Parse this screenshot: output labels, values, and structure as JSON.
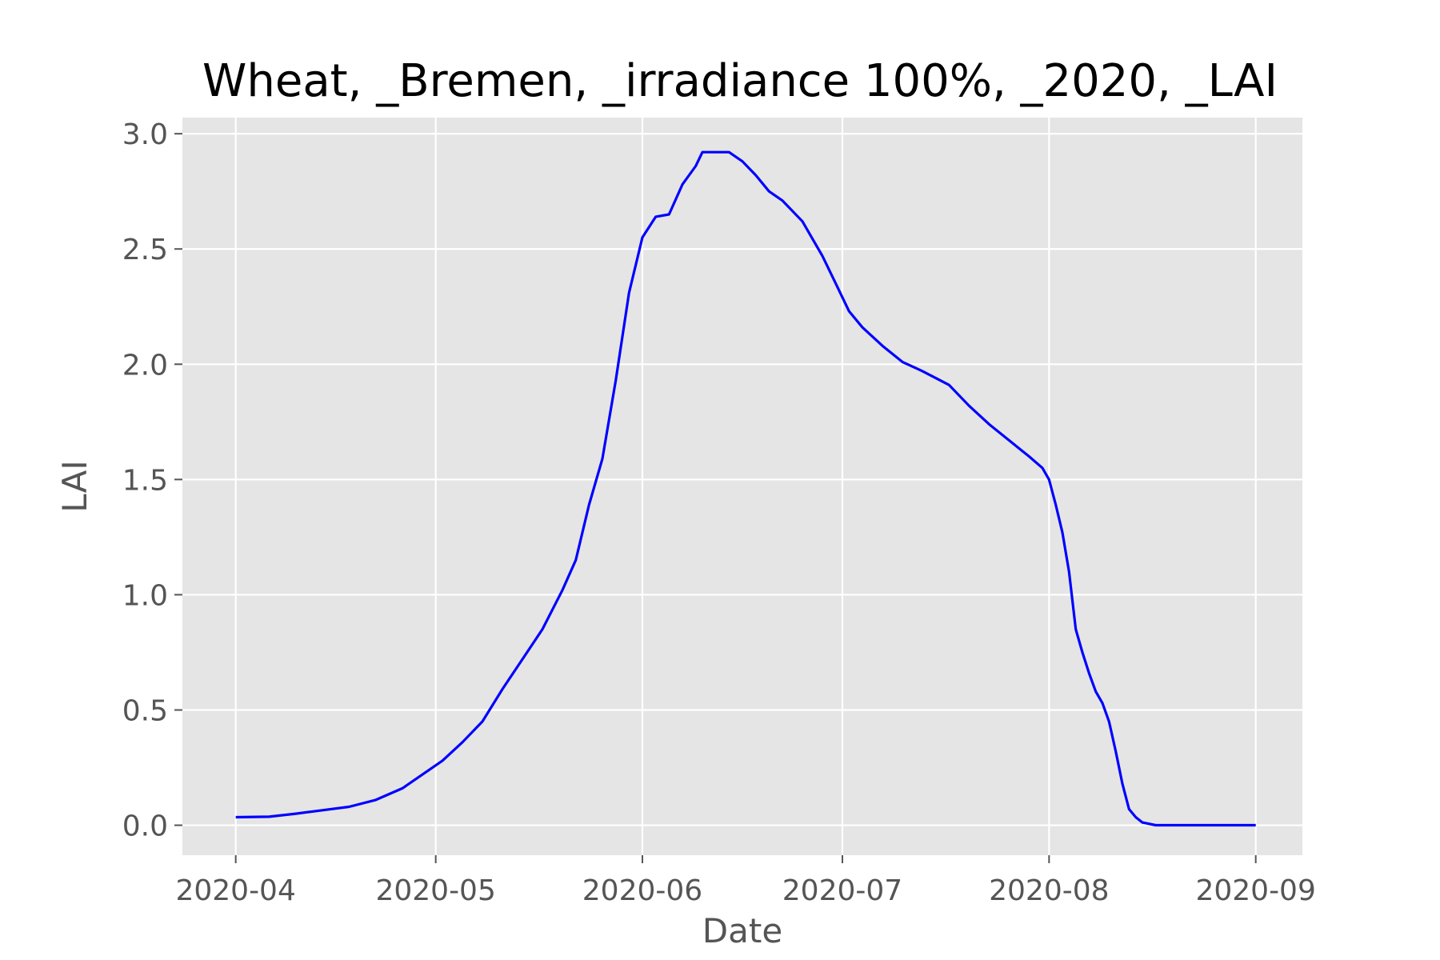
{
  "chart_data": {
    "type": "line",
    "title": "Wheat, _Bremen, _irradiance 100%, _2020, _LAI",
    "xlabel": "Date",
    "ylabel": "LAI",
    "x_ticks": [
      "2020-04",
      "2020-05",
      "2020-06",
      "2020-07",
      "2020-08",
      "2020-09"
    ],
    "y_ticks": [
      "0.0",
      "0.5",
      "1.0",
      "1.5",
      "2.0",
      "2.5",
      "3.0"
    ],
    "xlim": [
      "2020-03-24",
      "2020-09-08"
    ],
    "ylim": [
      -0.13,
      3.07
    ],
    "grid": true,
    "style": "ggplot",
    "colors": {
      "line": "#0000ff",
      "panel": "#e5e5e5",
      "grid": "#ffffff",
      "tick_text": "#555555"
    },
    "series": [
      {
        "points": [
          [
            "2020-04-01",
            0.035
          ],
          [
            "2020-04-06",
            0.037
          ],
          [
            "2020-04-10",
            0.05
          ],
          [
            "2020-04-14",
            0.065
          ],
          [
            "2020-04-18",
            0.08
          ],
          [
            "2020-04-22",
            0.11
          ],
          [
            "2020-04-26",
            0.16
          ],
          [
            "2020-04-30",
            0.24
          ],
          [
            "2020-05-02",
            0.28
          ],
          [
            "2020-05-05",
            0.36
          ],
          [
            "2020-05-08",
            0.45
          ],
          [
            "2020-05-11",
            0.59
          ],
          [
            "2020-05-14",
            0.72
          ],
          [
            "2020-05-17",
            0.85
          ],
          [
            "2020-05-20",
            1.02
          ],
          [
            "2020-05-22",
            1.15
          ],
          [
            "2020-05-24",
            1.39
          ],
          [
            "2020-05-26",
            1.59
          ],
          [
            "2020-05-28",
            1.93
          ],
          [
            "2020-05-30",
            2.31
          ],
          [
            "2020-06-01",
            2.55
          ],
          [
            "2020-06-03",
            2.64
          ],
          [
            "2020-06-05",
            2.65
          ],
          [
            "2020-06-07",
            2.78
          ],
          [
            "2020-06-09",
            2.86
          ],
          [
            "2020-06-10",
            2.92
          ],
          [
            "2020-06-12",
            2.92
          ],
          [
            "2020-06-14",
            2.92
          ],
          [
            "2020-06-16",
            2.88
          ],
          [
            "2020-06-18",
            2.82
          ],
          [
            "2020-06-20",
            2.75
          ],
          [
            "2020-06-22",
            2.71
          ],
          [
            "2020-06-25",
            2.62
          ],
          [
            "2020-06-28",
            2.47
          ],
          [
            "2020-06-30",
            2.35
          ],
          [
            "2020-07-02",
            2.23
          ],
          [
            "2020-07-04",
            2.16
          ],
          [
            "2020-07-07",
            2.08
          ],
          [
            "2020-07-10",
            2.01
          ],
          [
            "2020-07-13",
            1.97
          ],
          [
            "2020-07-15",
            1.94
          ],
          [
            "2020-07-17",
            1.91
          ],
          [
            "2020-07-20",
            1.82
          ],
          [
            "2020-07-23",
            1.74
          ],
          [
            "2020-07-26",
            1.67
          ],
          [
            "2020-07-29",
            1.6
          ],
          [
            "2020-07-31",
            1.55
          ],
          [
            "2020-08-01",
            1.5
          ],
          [
            "2020-08-02",
            1.39
          ],
          [
            "2020-08-03",
            1.27
          ],
          [
            "2020-08-04",
            1.1
          ],
          [
            "2020-08-05",
            0.85
          ],
          [
            "2020-08-06",
            0.75
          ],
          [
            "2020-08-07",
            0.66
          ],
          [
            "2020-08-08",
            0.58
          ],
          [
            "2020-08-09",
            0.53
          ],
          [
            "2020-08-10",
            0.45
          ],
          [
            "2020-08-11",
            0.32
          ],
          [
            "2020-08-12",
            0.18
          ],
          [
            "2020-08-13",
            0.07
          ],
          [
            "2020-08-14",
            0.035
          ],
          [
            "2020-08-15",
            0.012
          ],
          [
            "2020-08-17",
            0.0
          ],
          [
            "2020-09-01",
            0.0
          ]
        ]
      }
    ]
  }
}
